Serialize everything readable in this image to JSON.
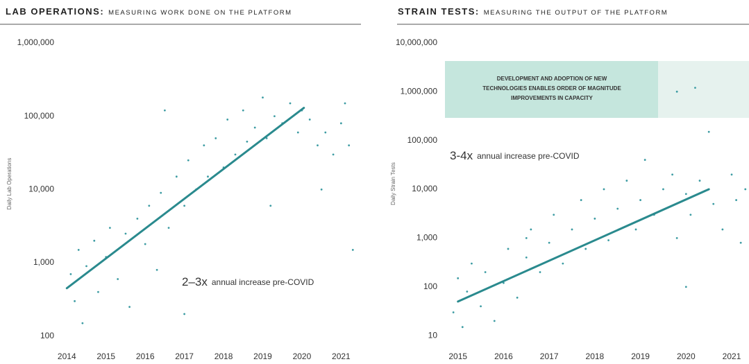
{
  "chart_data": [
    {
      "type": "scatter",
      "title": "LAB OPERATIONS:",
      "subtitle": "MEASURING WORK DONE ON THE PLATFORM",
      "y_label": "Daily Lab Operations",
      "log": true,
      "annotation_emphasis": "2–3x",
      "annotation": "annual increase pre-COVID",
      "xlim": [
        2013.8,
        2021.33
      ],
      "xticks": [
        2014,
        2015,
        2016,
        2017,
        2018,
        2019,
        2020,
        2021
      ],
      "ylim": [
        80,
        1200000
      ],
      "yticks": [
        100,
        {
          "value": 1000,
          "label": "1,000"
        },
        {
          "value": 10000,
          "label": "10,000"
        },
        {
          "value": 100000,
          "label": "100,000"
        },
        {
          "value": 1000000,
          "label": "1,000,000"
        }
      ],
      "points": {
        "color": "#3d9ca3",
        "x": [
          2014.1,
          2014.2,
          2014.3,
          2014.4,
          2014.5,
          2014.7,
          2014.8,
          2015.0,
          2015.1,
          2015.3,
          2015.5,
          2015.6,
          2015.8,
          2016.0,
          2016.1,
          2016.3,
          2016.4,
          2016.5,
          2016.6,
          2016.8,
          2017.0,
          2017.1,
          2017.3,
          2017.5,
          2017.6,
          2017.8,
          2018.0,
          2018.1,
          2018.3,
          2018.5,
          2018.6,
          2018.8,
          2019.0,
          2019.1,
          2019.3,
          2019.5,
          2019.7,
          2019.9,
          2020.0,
          2020.2,
          2020.4,
          2020.5,
          2020.6,
          2020.8,
          2021.0,
          2021.1,
          2021.2,
          2021.3,
          2019.2,
          2017.0
        ],
        "values": [
          700,
          300,
          1500,
          150,
          900,
          2000,
          400,
          1200,
          3000,
          600,
          2500,
          250,
          4000,
          1800,
          6000,
          800,
          9000,
          120000,
          3000,
          15000,
          6000,
          25000,
          10000,
          40000,
          15000,
          50000,
          20000,
          90000,
          30000,
          120000,
          45000,
          70000,
          180000,
          50000,
          100000,
          80000,
          150000,
          60000,
          120000,
          90000,
          40000,
          10000,
          60000,
          30000,
          80000,
          150000,
          40000,
          1500,
          6000,
          200
        ]
      },
      "trend": {
        "color": "#2a8a8e",
        "x": [
          2014,
          2020.05
        ],
        "values": [
          450,
          130000
        ]
      }
    },
    {
      "type": "scatter",
      "title": "STRAIN TESTS:",
      "subtitle": "MEASURING THE OUTPUT OF THE PLATFORM",
      "y_label": "Daily Strain Tests",
      "log": true,
      "annotation_emphasis": "3-4x",
      "annotation": "annual increase pre-COVID",
      "box_text": [
        "DEVELOPMENT AND ADOPTION OF NEW",
        "TECHNOLOGIES ENABLES ORDER OF MAGNITUDE",
        "IMPROVEMENTS IN CAPACITY"
      ],
      "xlim": [
        2014.7,
        2021.38
      ],
      "xticks": [
        2015,
        2016,
        2017,
        2018,
        2019,
        2020,
        2021
      ],
      "ylim": [
        7,
        12500000
      ],
      "yticks": [
        10,
        100,
        {
          "value": 1000,
          "label": "1,000"
        },
        {
          "value": 10000,
          "label": "10,000"
        },
        {
          "value": 100000,
          "label": "100,000"
        },
        {
          "value": 1000000,
          "label": "1,000,000"
        },
        {
          "value": 10000000,
          "label": "10,000,000"
        }
      ],
      "points": {
        "color": "#3d9ca3",
        "x": [
          2014.9,
          2015.0,
          2015.1,
          2015.2,
          2015.3,
          2015.5,
          2015.6,
          2015.8,
          2016.0,
          2016.1,
          2016.3,
          2016.5,
          2016.6,
          2016.8,
          2017.0,
          2017.1,
          2017.3,
          2017.5,
          2017.7,
          2017.8,
          2018.0,
          2018.2,
          2018.3,
          2018.5,
          2018.7,
          2018.9,
          2019.0,
          2019.1,
          2019.3,
          2019.5,
          2019.7,
          2019.8,
          2020.0,
          2020.1,
          2020.3,
          2020.5,
          2020.6,
          2020.8,
          2021.0,
          2021.1,
          2021.2,
          2021.3,
          2019.8,
          2020.2,
          2020.0,
          2016.5
        ],
        "values": [
          30,
          150,
          15,
          80,
          300,
          40,
          200,
          20,
          120,
          600,
          60,
          400,
          1500,
          200,
          800,
          3000,
          300,
          1500,
          6000,
          600,
          2500,
          10000,
          900,
          4000,
          15000,
          1500,
          6000,
          40000,
          3000,
          10000,
          20000,
          1000,
          8000,
          3000,
          15000,
          150000,
          5000,
          1500,
          20000,
          6000,
          800,
          10000,
          1000000,
          1200000,
          100,
          1000
        ]
      },
      "trend": {
        "color": "#2a8a8e",
        "x": [
          2015,
          2020.5
        ],
        "values": [
          50,
          10000
        ]
      }
    }
  ]
}
